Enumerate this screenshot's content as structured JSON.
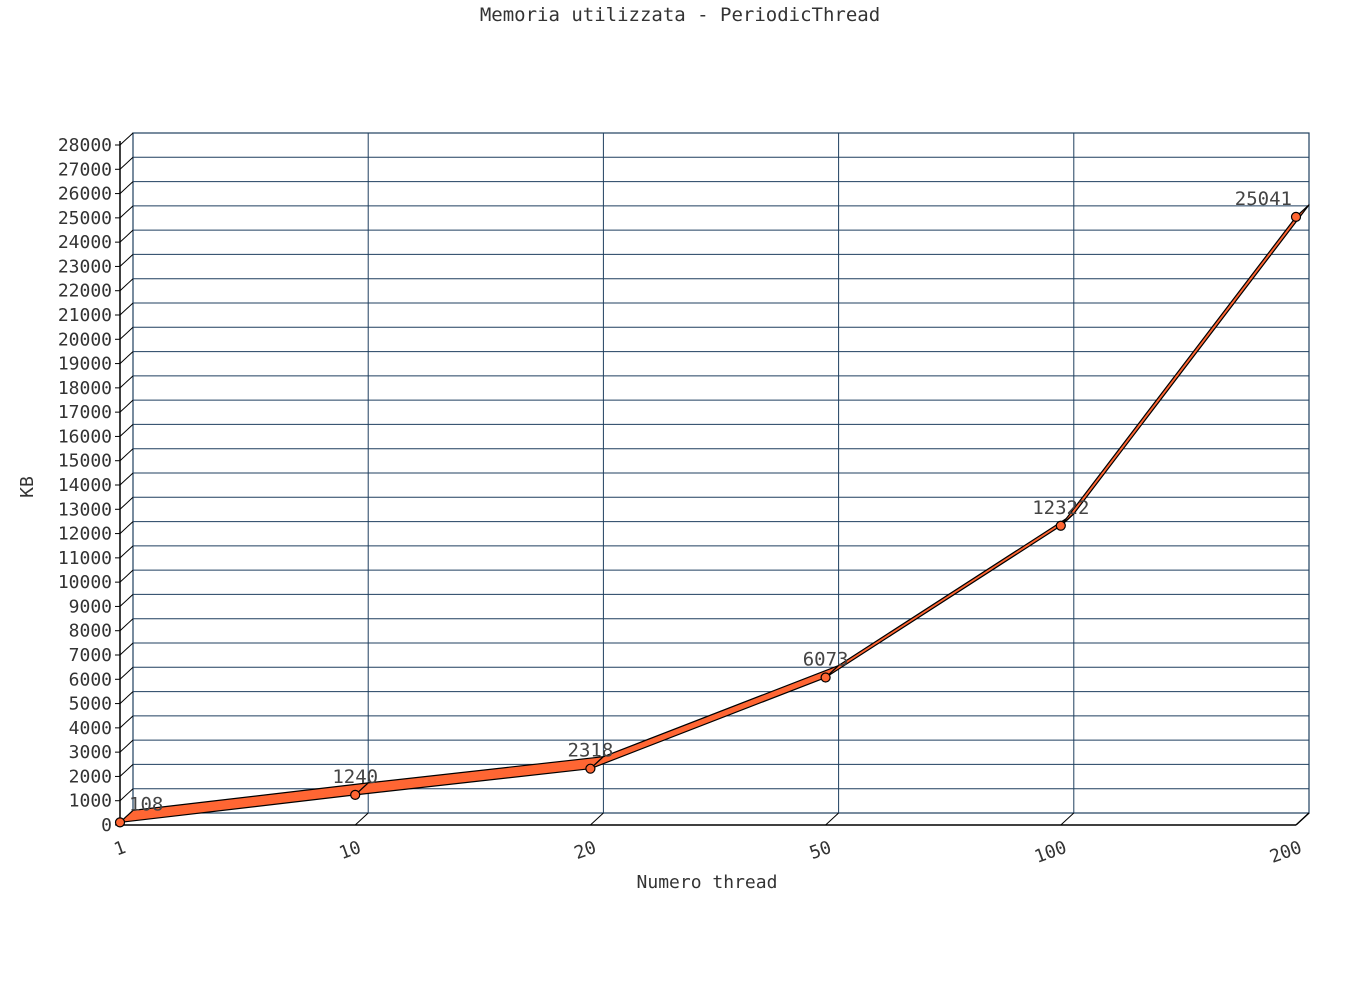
{
  "chart_data": {
    "type": "line",
    "title": "Memoria utilizzata - PeriodicThread",
    "xlabel": "Numero thread",
    "ylabel": "KB",
    "categories": [
      "1",
      "10",
      "20",
      "50",
      "100",
      "200"
    ],
    "series": [
      {
        "values": [
          108,
          1240,
          2318,
          6073,
          12322,
          25041
        ],
        "color": "#ff6633"
      }
    ],
    "ylim": [
      0,
      28000
    ],
    "ytick_step": 1000,
    "grid": true,
    "grid_color": "#1f3f5f",
    "line_color": "#ff6633",
    "edge_color": "#000000"
  }
}
